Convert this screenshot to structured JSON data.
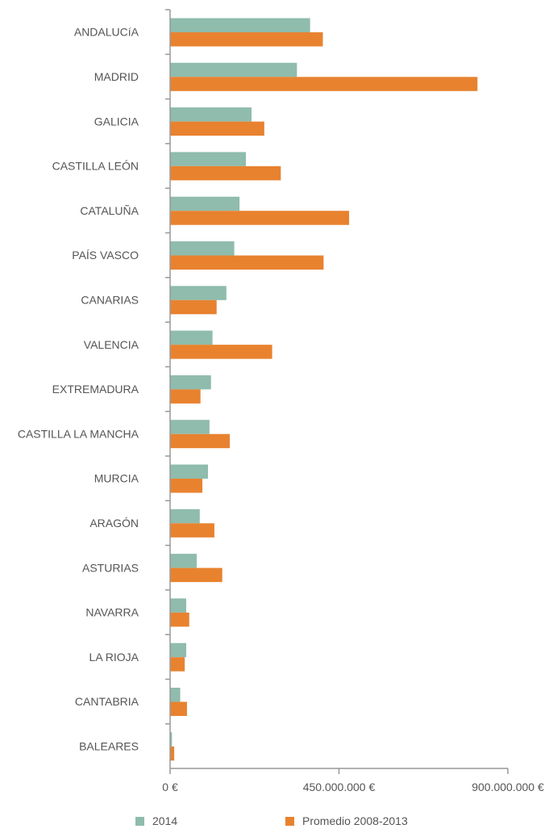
{
  "chart_data": {
    "type": "bar",
    "orientation": "horizontal",
    "categories": [
      "ANDALUCíA",
      "MADRID",
      "GALICIA",
      "CASTILLA LEÓN",
      "CATALUÑA",
      "PAÍS VASCO",
      "CANARIAS",
      "VALENCIA",
      "EXTREMADURA",
      "CASTILLA LA MANCHA",
      "MURCIA",
      "ARAGÓN",
      "ASTURIAS",
      "NAVARRA",
      "LA RIOJA",
      "CANTABRIA",
      "BALEARES"
    ],
    "series": [
      {
        "name": "2014",
        "color": "#8fbcac",
        "values": [
          373000000,
          338000000,
          217000000,
          202000000,
          185000000,
          171000000,
          150000000,
          113000000,
          109000000,
          105000000,
          101000000,
          79000000,
          71000000,
          43000000,
          43000000,
          27000000,
          5000000
        ]
      },
      {
        "name": "Promedio 2008-2013",
        "color": "#e8822f",
        "values": [
          407000000,
          819000000,
          251000000,
          295000000,
          477000000,
          409000000,
          124000000,
          272000000,
          81000000,
          159000000,
          86000000,
          118000000,
          139000000,
          51000000,
          39000000,
          45000000,
          11000000
        ]
      }
    ],
    "xlim": [
      0,
      900000000
    ],
    "ticks": [
      {
        "value": 0,
        "label": "0 €"
      },
      {
        "value": 450000000,
        "label": "450.000.000 €"
      },
      {
        "value": 900000000,
        "label": "900.000.000 €"
      }
    ],
    "grid": false,
    "legend_position": "bottom",
    "title": "",
    "xlabel": "",
    "ylabel": ""
  }
}
